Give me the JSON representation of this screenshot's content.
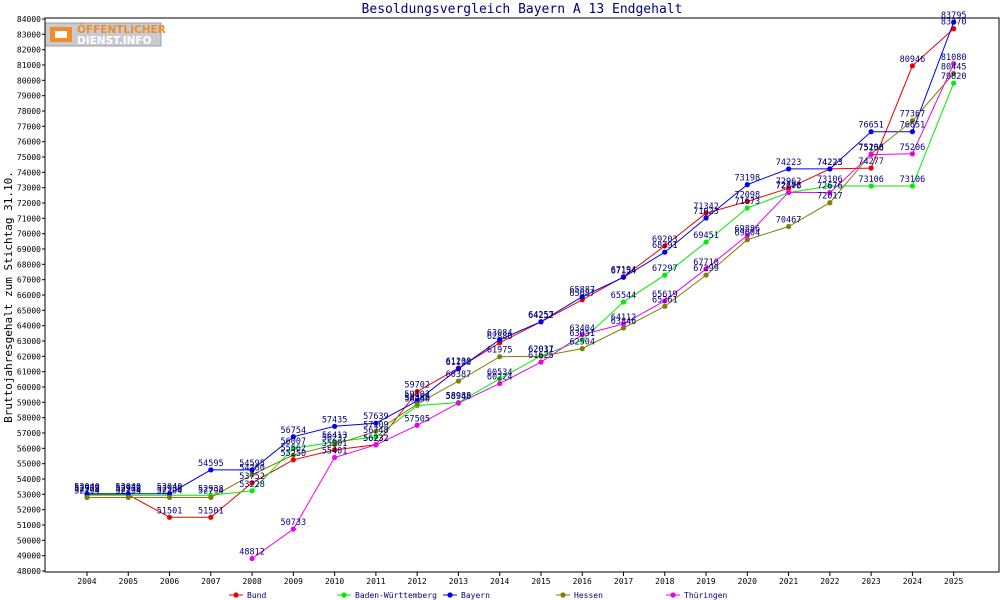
{
  "logo": {
    "line1": "ÖFFENTLICHER",
    "line2": "DIENST.INFO"
  },
  "chart_data": {
    "type": "line",
    "title": "Besoldungsvergleich Bayern A 13 Endgehalt",
    "xlabel": "",
    "ylabel": "Bruttojahresgehalt zum Stichtag 31.10.",
    "ylim": [
      48000,
      84000
    ],
    "ystep": 1000,
    "grid": false,
    "legend_position": "bottom",
    "x": [
      "2004",
      "2005",
      "2006",
      "2007",
      "2008",
      "2009",
      "2010",
      "2011",
      "2012",
      "2013",
      "2014",
      "2015",
      "2016",
      "2017",
      "2018",
      "2019",
      "2020",
      "2021",
      "2022",
      "2023",
      "2024",
      "2025"
    ],
    "series": [
      {
        "name": "Bund",
        "color": "#ee0000",
        "values": [
          52972,
          52972,
          51501,
          51501,
          53752,
          55250,
          55901,
          56232,
          59702,
          61230,
          62880,
          64252,
          65687,
          67194,
          69203,
          71342,
          72098,
          72962,
          74223,
          74277,
          80946,
          83370
        ]
      },
      {
        "name": "Baden-Württemberg",
        "color": "#00ee00",
        "values": [
          52938,
          52938,
          52938,
          52938,
          53228,
          56007,
          56413,
          56748,
          58788,
          58988,
          60534,
          62037,
          63051,
          65544,
          67297,
          69451,
          71673,
          72676,
          73106,
          73106,
          73106,
          79820
        ]
      },
      {
        "name": "Bayern",
        "color": "#0000ee",
        "values": [
          53040,
          53040,
          53040,
          54595,
          54595,
          56754,
          57435,
          57639,
          59102,
          61190,
          63084,
          64257,
          65887,
          67154,
          68791,
          71023,
          73198,
          74223,
          74223,
          76651,
          76651,
          83795
        ]
      },
      {
        "name": "Hessen",
        "color": "#808000",
        "values": [
          52794,
          52794,
          52794,
          52794,
          54280,
          55562,
          56237,
          57109,
          58888,
          60387,
          61975,
          62011,
          62504,
          63846,
          65261,
          67299,
          69604,
          70467,
          72017,
          75206,
          77367,
          80445
        ]
      },
      {
        "name": "Thüringen",
        "color": "#ee00ee",
        "values": [
          null,
          null,
          null,
          null,
          48812,
          50733,
          55401,
          56232,
          57505,
          58948,
          60224,
          61625,
          63404,
          64112,
          65619,
          67710,
          69886,
          72702,
          72676,
          75158,
          75206,
          81080
        ]
      }
    ]
  }
}
